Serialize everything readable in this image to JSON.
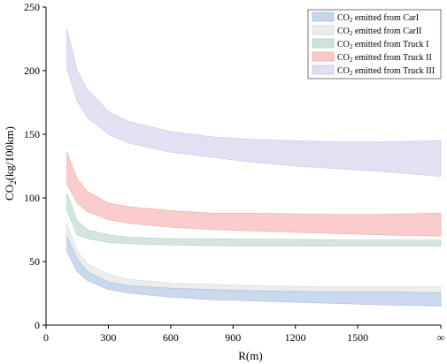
{
  "chart_data": {
    "type": "area",
    "chart_kind": "uncertainty-band",
    "title": "",
    "xlabel": "R(m)",
    "ylabel_main": "CO",
    "ylabel_sub": "2",
    "ylabel_tail": "(kg/100km)",
    "ylim": [
      0,
      250
    ],
    "xlim": [
      0,
      1900
    ],
    "x_ticks": [
      {
        "value": 0,
        "label": "0"
      },
      {
        "value": 300,
        "label": "300"
      },
      {
        "value": 600,
        "label": "600"
      },
      {
        "value": 900,
        "label": "900"
      },
      {
        "value": 1200,
        "label": "1200"
      },
      {
        "value": 1500,
        "label": "1500"
      },
      {
        "value": 1900,
        "label": "∞"
      }
    ],
    "y_ticks": [
      {
        "value": 0,
        "label": "0"
      },
      {
        "value": 50,
        "label": "50"
      },
      {
        "value": 100,
        "label": "100"
      },
      {
        "value": 150,
        "label": "150"
      },
      {
        "value": 200,
        "label": "200"
      },
      {
        "value": 250,
        "label": "250"
      }
    ],
    "grid": false,
    "legend_position": "top-right",
    "x": [
      100,
      150,
      200,
      300,
      400,
      600,
      800,
      1000,
      1200,
      1400,
      1600,
      1900
    ],
    "series": [
      {
        "name_pre": "CO",
        "name_sub": "2",
        "name_post": " emitted from CarI",
        "color": "#c5d6ec",
        "stroke": "#a9c0e0",
        "upper": [
          70,
          52,
          42,
          34,
          31,
          29,
          28,
          27,
          26.5,
          26,
          26,
          25.5
        ],
        "lower": [
          58,
          42,
          35,
          28,
          25,
          22,
          20,
          19,
          18,
          17,
          16,
          15
        ]
      },
      {
        "name_pre": "CO",
        "name_sub": "2",
        "name_post": " emitted from CarII",
        "color": "#ececec",
        "stroke": "#d4d4d4",
        "upper": [
          79,
          58,
          48,
          40,
          36,
          33,
          32,
          31,
          30.5,
          30,
          30,
          30
        ],
        "lower": [
          66,
          48,
          40,
          32,
          30,
          28,
          27,
          26.5,
          26,
          26,
          26,
          26
        ]
      },
      {
        "name_pre": "CO",
        "name_sub": "2",
        "name_post": " emitted from Truck I",
        "color": "#cfe3da",
        "stroke": "#b3d2c4",
        "upper": [
          104,
          82,
          75,
          71,
          69,
          68,
          68,
          67.5,
          67.5,
          67,
          67,
          67
        ],
        "lower": [
          90,
          71,
          68,
          65,
          64,
          63,
          62.5,
          62,
          62,
          62,
          62,
          62
        ]
      },
      {
        "name_pre": "CO",
        "name_sub": "2",
        "name_post": " emitted from Truck II",
        "color": "#fbc8c8",
        "stroke": "#f2a9a9",
        "upper": [
          136,
          115,
          105,
          96,
          93,
          90,
          88,
          88,
          87.5,
          87,
          87,
          88
        ],
        "lower": [
          111,
          96,
          89,
          83,
          80,
          77,
          75,
          74,
          73,
          72,
          71,
          70
        ]
      },
      {
        "name_pre": "CO",
        "name_sub": "2",
        "name_post": " emitted from Truck III",
        "color": "#e1ddf3",
        "stroke": "#cbc4ea",
        "upper": [
          233,
          200,
          185,
          168,
          160,
          152,
          148,
          146,
          145,
          144,
          144,
          145
        ],
        "lower": [
          202,
          176,
          163,
          150,
          143,
          136,
          132,
          128,
          125,
          123,
          121,
          117
        ]
      }
    ]
  }
}
